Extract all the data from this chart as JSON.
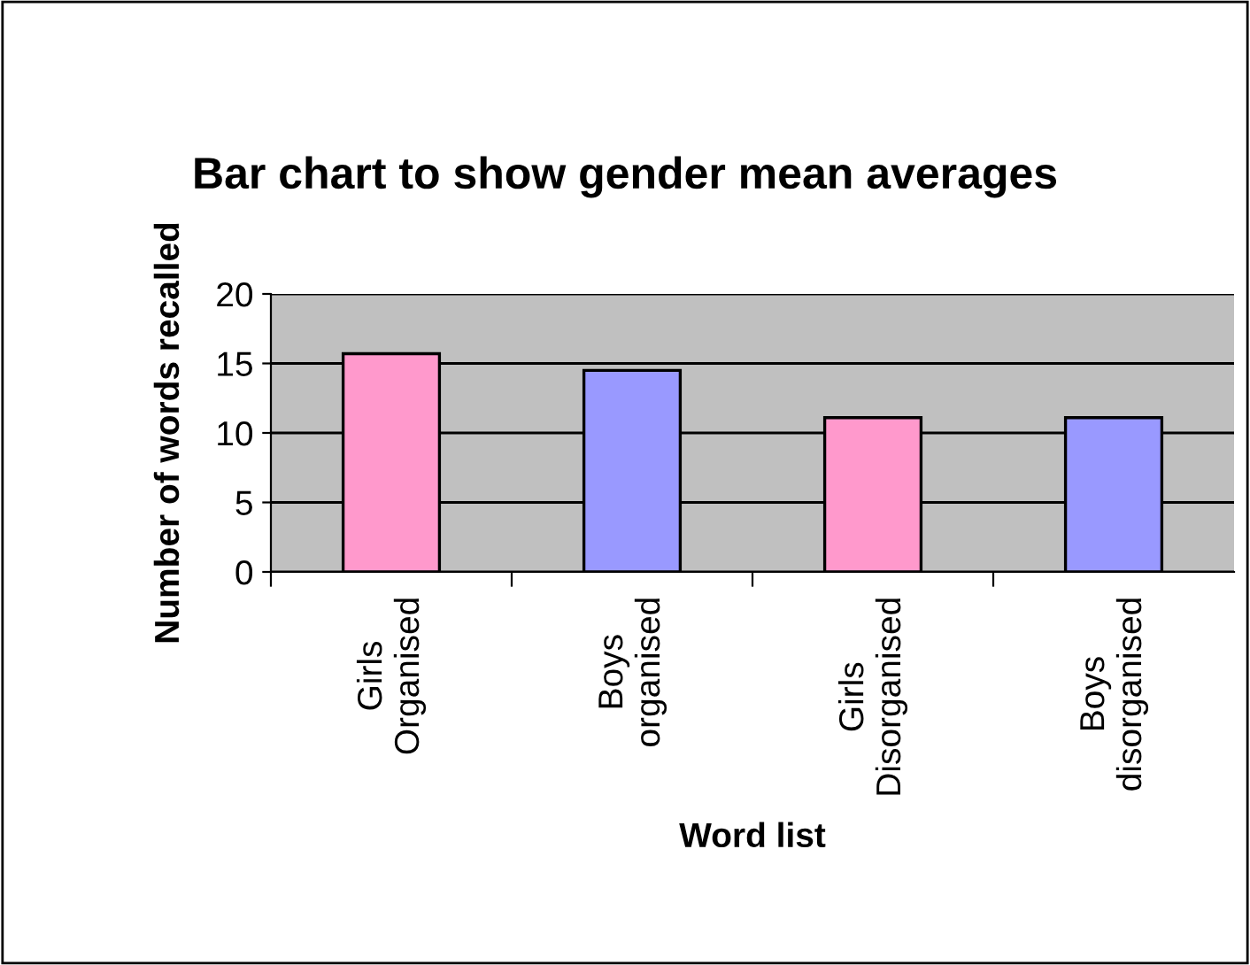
{
  "chart_data": {
    "type": "bar",
    "title": "Bar chart to show gender mean averages",
    "xlabel": "Word list",
    "ylabel": "Number of words recalled",
    "categories": [
      "Girls\nOrganised",
      "Boys\norganised",
      "Girls\nDisorganised",
      "Boys\ndisorganised"
    ],
    "values": [
      15.7,
      14.5,
      11.1,
      11.1
    ],
    "colors": [
      "#ff99cc",
      "#9999ff",
      "#ff99cc",
      "#9999ff"
    ],
    "ylim": [
      0,
      20
    ],
    "yticks": [
      0,
      5,
      10,
      15,
      20
    ],
    "grid": "y",
    "legend": false
  }
}
